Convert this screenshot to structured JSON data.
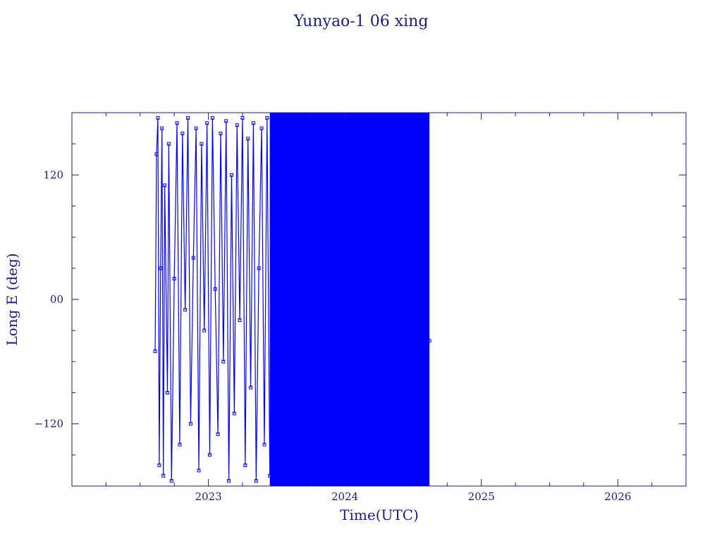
{
  "chart_data": {
    "type": "line",
    "title": "Yunyao-1 06 xing",
    "xlabel": "Time(UTC)",
    "ylabel": "Long E (deg)",
    "xlim": [
      2022.0,
      2026.5
    ],
    "ylim": [
      -180,
      180
    ],
    "x_ticks": [
      {
        "value": 2023,
        "label": "2023"
      },
      {
        "value": 2024,
        "label": "2024"
      },
      {
        "value": 2025,
        "label": "2025"
      },
      {
        "value": 2026,
        "label": "2026"
      }
    ],
    "y_ticks": [
      {
        "value": 120,
        "label": "120"
      },
      {
        "value": 0,
        "label": "00"
      },
      {
        "value": -120,
        "label": "−120"
      }
    ],
    "series_color": "#0000ff",
    "axis_color": "#1a1a8c",
    "data_start": 2022.61,
    "data_end": 2024.62,
    "note_dense_region": [
      2023.45,
      2024.62
    ],
    "series": [
      {
        "x": [
          2022.61,
          2022.62,
          2022.63,
          2022.64,
          2022.65,
          2022.66,
          2022.67,
          2022.68,
          2022.7,
          2022.71,
          2022.73,
          2022.75,
          2022.77,
          2022.79,
          2022.81,
          2022.83,
          2022.85,
          2022.87,
          2022.89,
          2022.91,
          2022.93,
          2022.95,
          2022.97,
          2022.99,
          2023.01,
          2023.03,
          2023.05,
          2023.07,
          2023.09,
          2023.11,
          2023.13,
          2023.15,
          2023.17,
          2023.19,
          2023.21,
          2023.23,
          2023.25,
          2023.27,
          2023.29,
          2023.31,
          2023.33,
          2023.35,
          2023.37,
          2023.39,
          2023.41,
          2023.43,
          2023.45,
          2023.47,
          2023.49,
          2023.51,
          2023.53,
          2023.55,
          2023.57,
          2023.6,
          2023.63,
          2023.66,
          2023.69,
          2023.72,
          2023.75,
          2023.78,
          2023.81,
          2023.84,
          2023.87,
          2023.9,
          2023.93,
          2023.96,
          2023.99,
          2024.02,
          2024.05,
          2024.08,
          2024.11,
          2024.14,
          2024.17,
          2024.2,
          2024.23,
          2024.26,
          2024.29,
          2024.32,
          2024.35,
          2024.38,
          2024.41,
          2024.44,
          2024.47,
          2024.5,
          2024.53,
          2024.56,
          2024.59,
          2024.62
        ],
        "y": [
          -50,
          140,
          175,
          -160,
          30,
          165,
          -170,
          110,
          -90,
          150,
          -175,
          20,
          170,
          -140,
          160,
          -10,
          175,
          -120,
          40,
          165,
          -165,
          150,
          -30,
          170,
          -150,
          175,
          10,
          -130,
          160,
          -60,
          172,
          -175,
          120,
          -110,
          168,
          -20,
          175,
          -160,
          155,
          -85,
          170,
          -175,
          30,
          165,
          -140,
          175,
          -170,
          100,
          -120,
          176,
          -176,
          150,
          -160,
          175,
          -175,
          170,
          -172,
          176,
          -178,
          174,
          -176,
          178,
          -174,
          176,
          -178,
          172,
          -176,
          178,
          -175,
          176,
          -178,
          174,
          -176,
          178,
          -177,
          175,
          -178,
          176,
          -174,
          178,
          -176,
          174,
          -175,
          170,
          -178,
          60,
          -20,
          -40
        ]
      }
    ]
  }
}
